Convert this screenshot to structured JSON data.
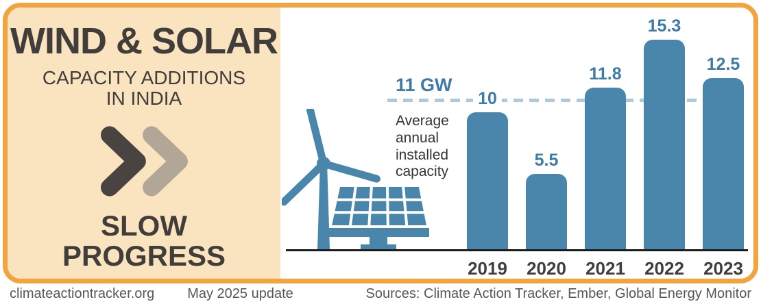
{
  "left_panel": {
    "title": "WIND & SOLAR",
    "subtitle_line1": "CAPACITY ADDITIONS",
    "subtitle_line2": "IN INDIA",
    "verdict_line1": "SLOW",
    "verdict_line2": "PROGRESS"
  },
  "chart_data": {
    "type": "bar",
    "title": "Wind & solar capacity additions in India",
    "categories": [
      "2019",
      "2020",
      "2021",
      "2022",
      "2023"
    ],
    "values": [
      10,
      5.5,
      11.8,
      15.3,
      12.5
    ],
    "unit": "GW",
    "ylim": [
      0,
      17
    ],
    "grid": false,
    "average_line": {
      "value": 11,
      "label": "11 GW",
      "description": "Average annual installed capacity"
    },
    "bar_color": "#4A86AC",
    "value_label_color": "#3E7BA7",
    "average_line_color": "#ABCADF"
  },
  "footer": {
    "site": "climateactiontracker.org",
    "update": "May 2025 update",
    "sources": "Sources: Climate Action Tracker, Ember, Global Energy Monitor"
  },
  "icons": {
    "chevrons": "fast-forward-chevrons-icon",
    "turbine": "wind-turbine-icon",
    "solar": "solar-panel-icon"
  },
  "colors": {
    "border_orange": "#F2A53F",
    "panel_peach": "#FAE3BF",
    "heading_dark": "#413D3B",
    "chevron_dark": "#494341",
    "chevron_light": "#B2A796",
    "bar_blue": "#4A86AC",
    "value_blue": "#3E7BA7",
    "dash_blue": "#ABCADF",
    "axis_black": "#1B1B1B",
    "footer_gray": "#55575C"
  }
}
